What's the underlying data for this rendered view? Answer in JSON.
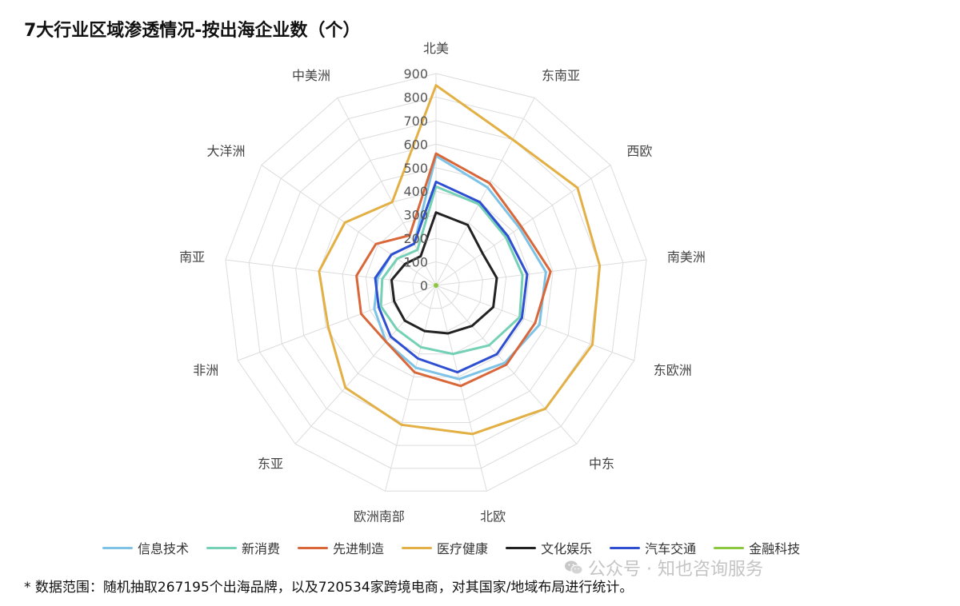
{
  "title": "7大行业区域渗透情况-按出海企业数（个）",
  "chart_data": {
    "type": "radar",
    "title": "7大行业区域渗透情况-按出海企业数（个）",
    "categories": [
      "北美",
      "东南亚",
      "西欧",
      "南美洲",
      "东欧洲",
      "中东",
      "北欧",
      "欧洲南部",
      "东亚",
      "非洲",
      "南亚",
      "大洋洲",
      "中美洲"
    ],
    "rlim": [
      0,
      900
    ],
    "ticks": [
      "0",
      "100",
      "200",
      "300",
      "400",
      "500",
      "600",
      "700",
      "800",
      "900"
    ],
    "grid": true,
    "legend_position": "bottom",
    "series": [
      {
        "name": "信息技术",
        "color": "#7ec3e6",
        "values": [
          550,
          470,
          430,
          470,
          470,
          440,
          410,
          360,
          320,
          280,
          250,
          230,
          200
        ]
      },
      {
        "name": "新消费",
        "color": "#74d1b5",
        "values": [
          420,
          390,
          360,
          370,
          380,
          340,
          300,
          270,
          250,
          250,
          230,
          200,
          170
        ]
      },
      {
        "name": "先进制造",
        "color": "#d9673a",
        "values": [
          560,
          490,
          440,
          490,
          450,
          450,
          440,
          380,
          320,
          340,
          340,
          310,
          240
        ]
      },
      {
        "name": "医疗健康",
        "color": "#e3b045",
        "values": [
          850,
          700,
          730,
          700,
          710,
          700,
          650,
          610,
          580,
          490,
          500,
          470,
          400
        ]
      },
      {
        "name": "文化娱乐",
        "color": "#222222",
        "values": [
          310,
          290,
          240,
          260,
          260,
          230,
          210,
          200,
          200,
          190,
          190,
          160,
          140
        ]
      },
      {
        "name": "汽车交通",
        "color": "#2e4fd1",
        "values": [
          440,
          400,
          370,
          390,
          390,
          390,
          380,
          320,
          290,
          260,
          260,
          230,
          200
        ]
      },
      {
        "name": "金融科技",
        "color": "#8dc63f",
        "values": [
          5,
          5,
          5,
          5,
          5,
          5,
          5,
          5,
          5,
          5,
          5,
          5,
          5
        ]
      }
    ]
  },
  "legend": [
    {
      "label": "信息技术",
      "color": "#7ec3e6"
    },
    {
      "label": "新消费",
      "color": "#74d1b5"
    },
    {
      "label": "先进制造",
      "color": "#d9673a"
    },
    {
      "label": "医疗健康",
      "color": "#e3b045"
    },
    {
      "label": "文化娱乐",
      "color": "#222222"
    },
    {
      "label": "汽车交通",
      "color": "#2e4fd1"
    },
    {
      "label": "金融科技",
      "color": "#8dc63f"
    }
  ],
  "watermark": {
    "text": "公众号 · 知也咨询服务",
    "icon": "wechat-icon"
  },
  "footnote": "* 数据范围：随机抽取267195个出海品牌，以及720534家跨境电商，对其国家/地域布局进行统计。"
}
